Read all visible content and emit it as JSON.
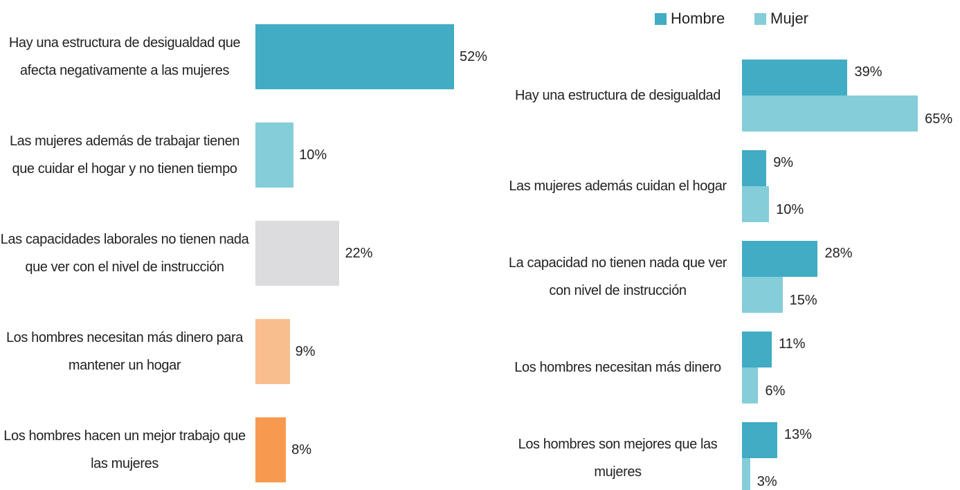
{
  "chart_data": [
    {
      "type": "bar",
      "categories": [
        "Hay una estructura de desigualdad que afecta negativamente a las mujeres",
        "Las mujeres además de trabajar tienen que cuidar el hogar y no tienen tiempo",
        "Las capacidades laborales no tienen nada que ver con el nivel de instrucción",
        "Los hombres necesitan más dinero para mantener un hogar",
        "Los hombres hacen un mejor trabajo que las mujeres"
      ],
      "values": [
        52,
        10,
        22,
        9,
        8
      ],
      "value_labels": [
        "52%",
        "10%",
        "22%",
        "9%",
        "8%"
      ],
      "colors": [
        "#41acc4",
        "#84cdd9",
        "#dcdcde",
        "#f9be8e",
        "#f79a4f"
      ]
    },
    {
      "type": "grouped-bar",
      "categories": [
        "Hay una estructura de desigualdad",
        "Las mujeres además cuidan el hogar",
        "La capacidad no tienen nada que ver con nivel de instrucción",
        "Los hombres necesitan más dinero",
        "Los hombres son mejores que las mujeres"
      ],
      "series": [
        {
          "name": "Hombre",
          "color": "#41acc4",
          "values": [
            39,
            9,
            28,
            11,
            13
          ],
          "value_labels": [
            "39%",
            "9%",
            "28%",
            "11%",
            "13%"
          ]
        },
        {
          "name": "Mujer",
          "color": "#84cdd9",
          "values": [
            65,
            10,
            15,
            6,
            3
          ],
          "value_labels": [
            "65%",
            "10%",
            "15%",
            "6%",
            "3%"
          ]
        }
      ],
      "legend": "top"
    }
  ]
}
